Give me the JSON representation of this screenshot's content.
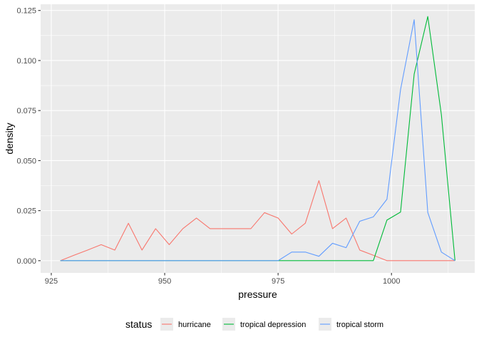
{
  "chart_data": {
    "type": "line",
    "title": "",
    "xlabel": "pressure",
    "ylabel": "density",
    "xlim": [
      922.65,
      1018.35
    ],
    "ylim": [
      -0.0061,
      0.1281
    ],
    "x_ticks": [
      925,
      950,
      975,
      1000
    ],
    "x_tick_labels": [
      "925",
      "950",
      "975",
      "1000"
    ],
    "y_ticks": [
      0,
      0.025,
      0.05,
      0.075,
      0.1,
      0.125
    ],
    "y_tick_labels": [
      "0.000",
      "0.025",
      "0.050",
      "0.075",
      "0.100",
      "0.125"
    ],
    "grid": true,
    "legend_title": "status",
    "legend_position": "bottom",
    "series": [
      {
        "name": "hurricane",
        "color": "#F8766D",
        "x": [
          927,
          930,
          933,
          936,
          939,
          942,
          945,
          948,
          951,
          954,
          957,
          960,
          963,
          966,
          969,
          972,
          975,
          978,
          981,
          984,
          987,
          990,
          993,
          996,
          999,
          1002,
          1005,
          1008,
          1011,
          1014
        ],
        "y": [
          0,
          0.0027,
          0.0053,
          0.008,
          0.0053,
          0.0187,
          0.0053,
          0.016,
          0.008,
          0.016,
          0.0213,
          0.016,
          0.016,
          0.016,
          0.016,
          0.024,
          0.0213,
          0.0133,
          0.0187,
          0.04,
          0.016,
          0.0213,
          0.0053,
          0.0027,
          0,
          0,
          0,
          0,
          0,
          0
        ]
      },
      {
        "name": "tropical depression",
        "color": "#00BA38",
        "x": [
          927,
          930,
          933,
          936,
          939,
          942,
          945,
          948,
          951,
          954,
          957,
          960,
          963,
          966,
          969,
          972,
          975,
          978,
          981,
          984,
          987,
          990,
          993,
          996,
          999,
          1002,
          1005,
          1008,
          1011,
          1014
        ],
        "y": [
          0,
          0,
          0,
          0,
          0,
          0,
          0,
          0,
          0,
          0,
          0,
          0,
          0,
          0,
          0,
          0,
          0,
          0,
          0,
          0,
          0,
          0,
          0,
          0,
          0.0203,
          0.0243,
          0.0932,
          0.122,
          0.0729,
          0
        ]
      },
      {
        "name": "tropical storm",
        "color": "#619CFF",
        "x": [
          927,
          930,
          933,
          936,
          939,
          942,
          945,
          948,
          951,
          954,
          957,
          960,
          963,
          966,
          969,
          972,
          975,
          978,
          981,
          984,
          987,
          990,
          993,
          996,
          999,
          1002,
          1005,
          1008,
          1011,
          1014
        ],
        "y": [
          0,
          0,
          0,
          0,
          0,
          0,
          0,
          0,
          0,
          0,
          0,
          0,
          0,
          0,
          0,
          0,
          0,
          0.0043,
          0.0043,
          0.0022,
          0.0087,
          0.0065,
          0.0197,
          0.0219,
          0.0307,
          0.0855,
          0.1204,
          0.0241,
          0.0043,
          0
        ]
      }
    ]
  }
}
